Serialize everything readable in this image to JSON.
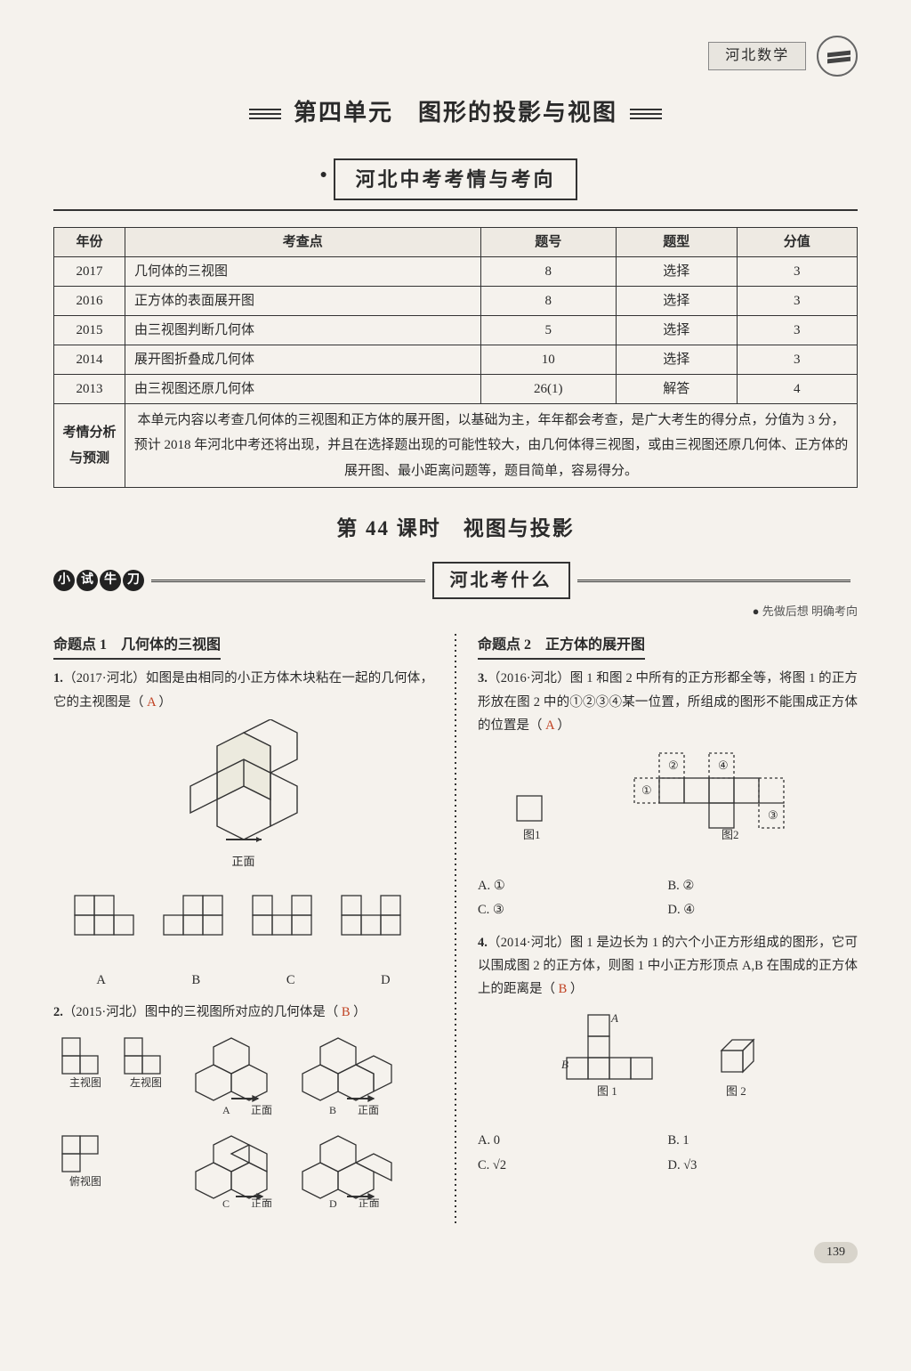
{
  "header": {
    "subject": "河北数学"
  },
  "unit_title": "第四单元　图形的投影与视图",
  "banner1": "河北中考考情与考向",
  "table": {
    "columns": [
      "年份",
      "考查点",
      "题号",
      "题型",
      "分值"
    ],
    "rows": [
      [
        "2017",
        "几何体的三视图",
        "8",
        "选择",
        "3"
      ],
      [
        "2016",
        "正方体的表面展开图",
        "8",
        "选择",
        "3"
      ],
      [
        "2015",
        "由三视图判断几何体",
        "5",
        "选择",
        "3"
      ],
      [
        "2014",
        "展开图折叠成几何体",
        "10",
        "选择",
        "3"
      ],
      [
        "2013",
        "由三视图还原几何体",
        "26(1)",
        "解答",
        "4"
      ]
    ],
    "analysis_label": "考情分析与预测",
    "analysis_text": "本单元内容以考查几何体的三视图和正方体的展开图，以基础为主，年年都会考查，是广大考生的得分点，分值为 3 分，预计 2018 年河北中考还将出现，并且在选择题出现的可能性较大，由几何体得三视图，或由三视图还原几何体、正方体的展开图、最小距离问题等，题目简单，容易得分。"
  },
  "lesson": "第 44 课时　视图与投影",
  "pill": [
    "小",
    "试",
    "牛",
    "刀"
  ],
  "banner2": "河北考什么",
  "sub_note": "先做后想 明确考向",
  "left": {
    "topic": "命题点 1　几何体的三视图",
    "q1": {
      "num": "1.",
      "src": "（2017·河北）",
      "text": "如图是由相同的小正方体木块粘在一起的几何体，它的主视图是（",
      "ans": "A",
      "tail": "）",
      "face": "正面",
      "opts": [
        "A",
        "B",
        "C",
        "D"
      ]
    },
    "q2": {
      "num": "2.",
      "src": "（2015·河北）",
      "text": "图中的三视图所对应的几何体是（",
      "ans": "B",
      "tail": "）",
      "labels": {
        "main": "主视图",
        "left": "左视图",
        "top": "俯视图",
        "face": "正面"
      },
      "opts": [
        "A",
        "B",
        "C",
        "D"
      ]
    }
  },
  "right": {
    "topic": "命题点 2　正方体的展开图",
    "q3": {
      "num": "3.",
      "src": "（2016·河北）",
      "text": "图 1 和图 2 中所有的正方形都全等，将图 1 的正方形放在图 2 中的①②③④某一位置，所组成的图形不能围成正方体的位置是（",
      "ans": "A",
      "tail": "）",
      "fig1": "图1",
      "fig2": "图2",
      "opts": [
        "A. ①",
        "B. ②",
        "C. ③",
        "D. ④"
      ]
    },
    "q4": {
      "num": "4.",
      "src": "（2014·河北）",
      "text": "图 1 是边长为 1 的六个小正方形组成的图形，它可以围成图 2 的正方体，则图 1 中小正方形顶点 A,B 在围成的正方体上的距离是（",
      "ans": "B",
      "tail": "）",
      "fig1": "图 1",
      "fig2": "图 2",
      "opts": [
        "A. 0",
        "B. 1",
        "C. √2",
        "D. √3"
      ]
    }
  },
  "page": "139",
  "colors": {
    "page_bg": "#f5f2ed",
    "text": "#2a2a2a",
    "border": "#333333",
    "answer": "#c04020",
    "pill_bg": "#222222"
  }
}
